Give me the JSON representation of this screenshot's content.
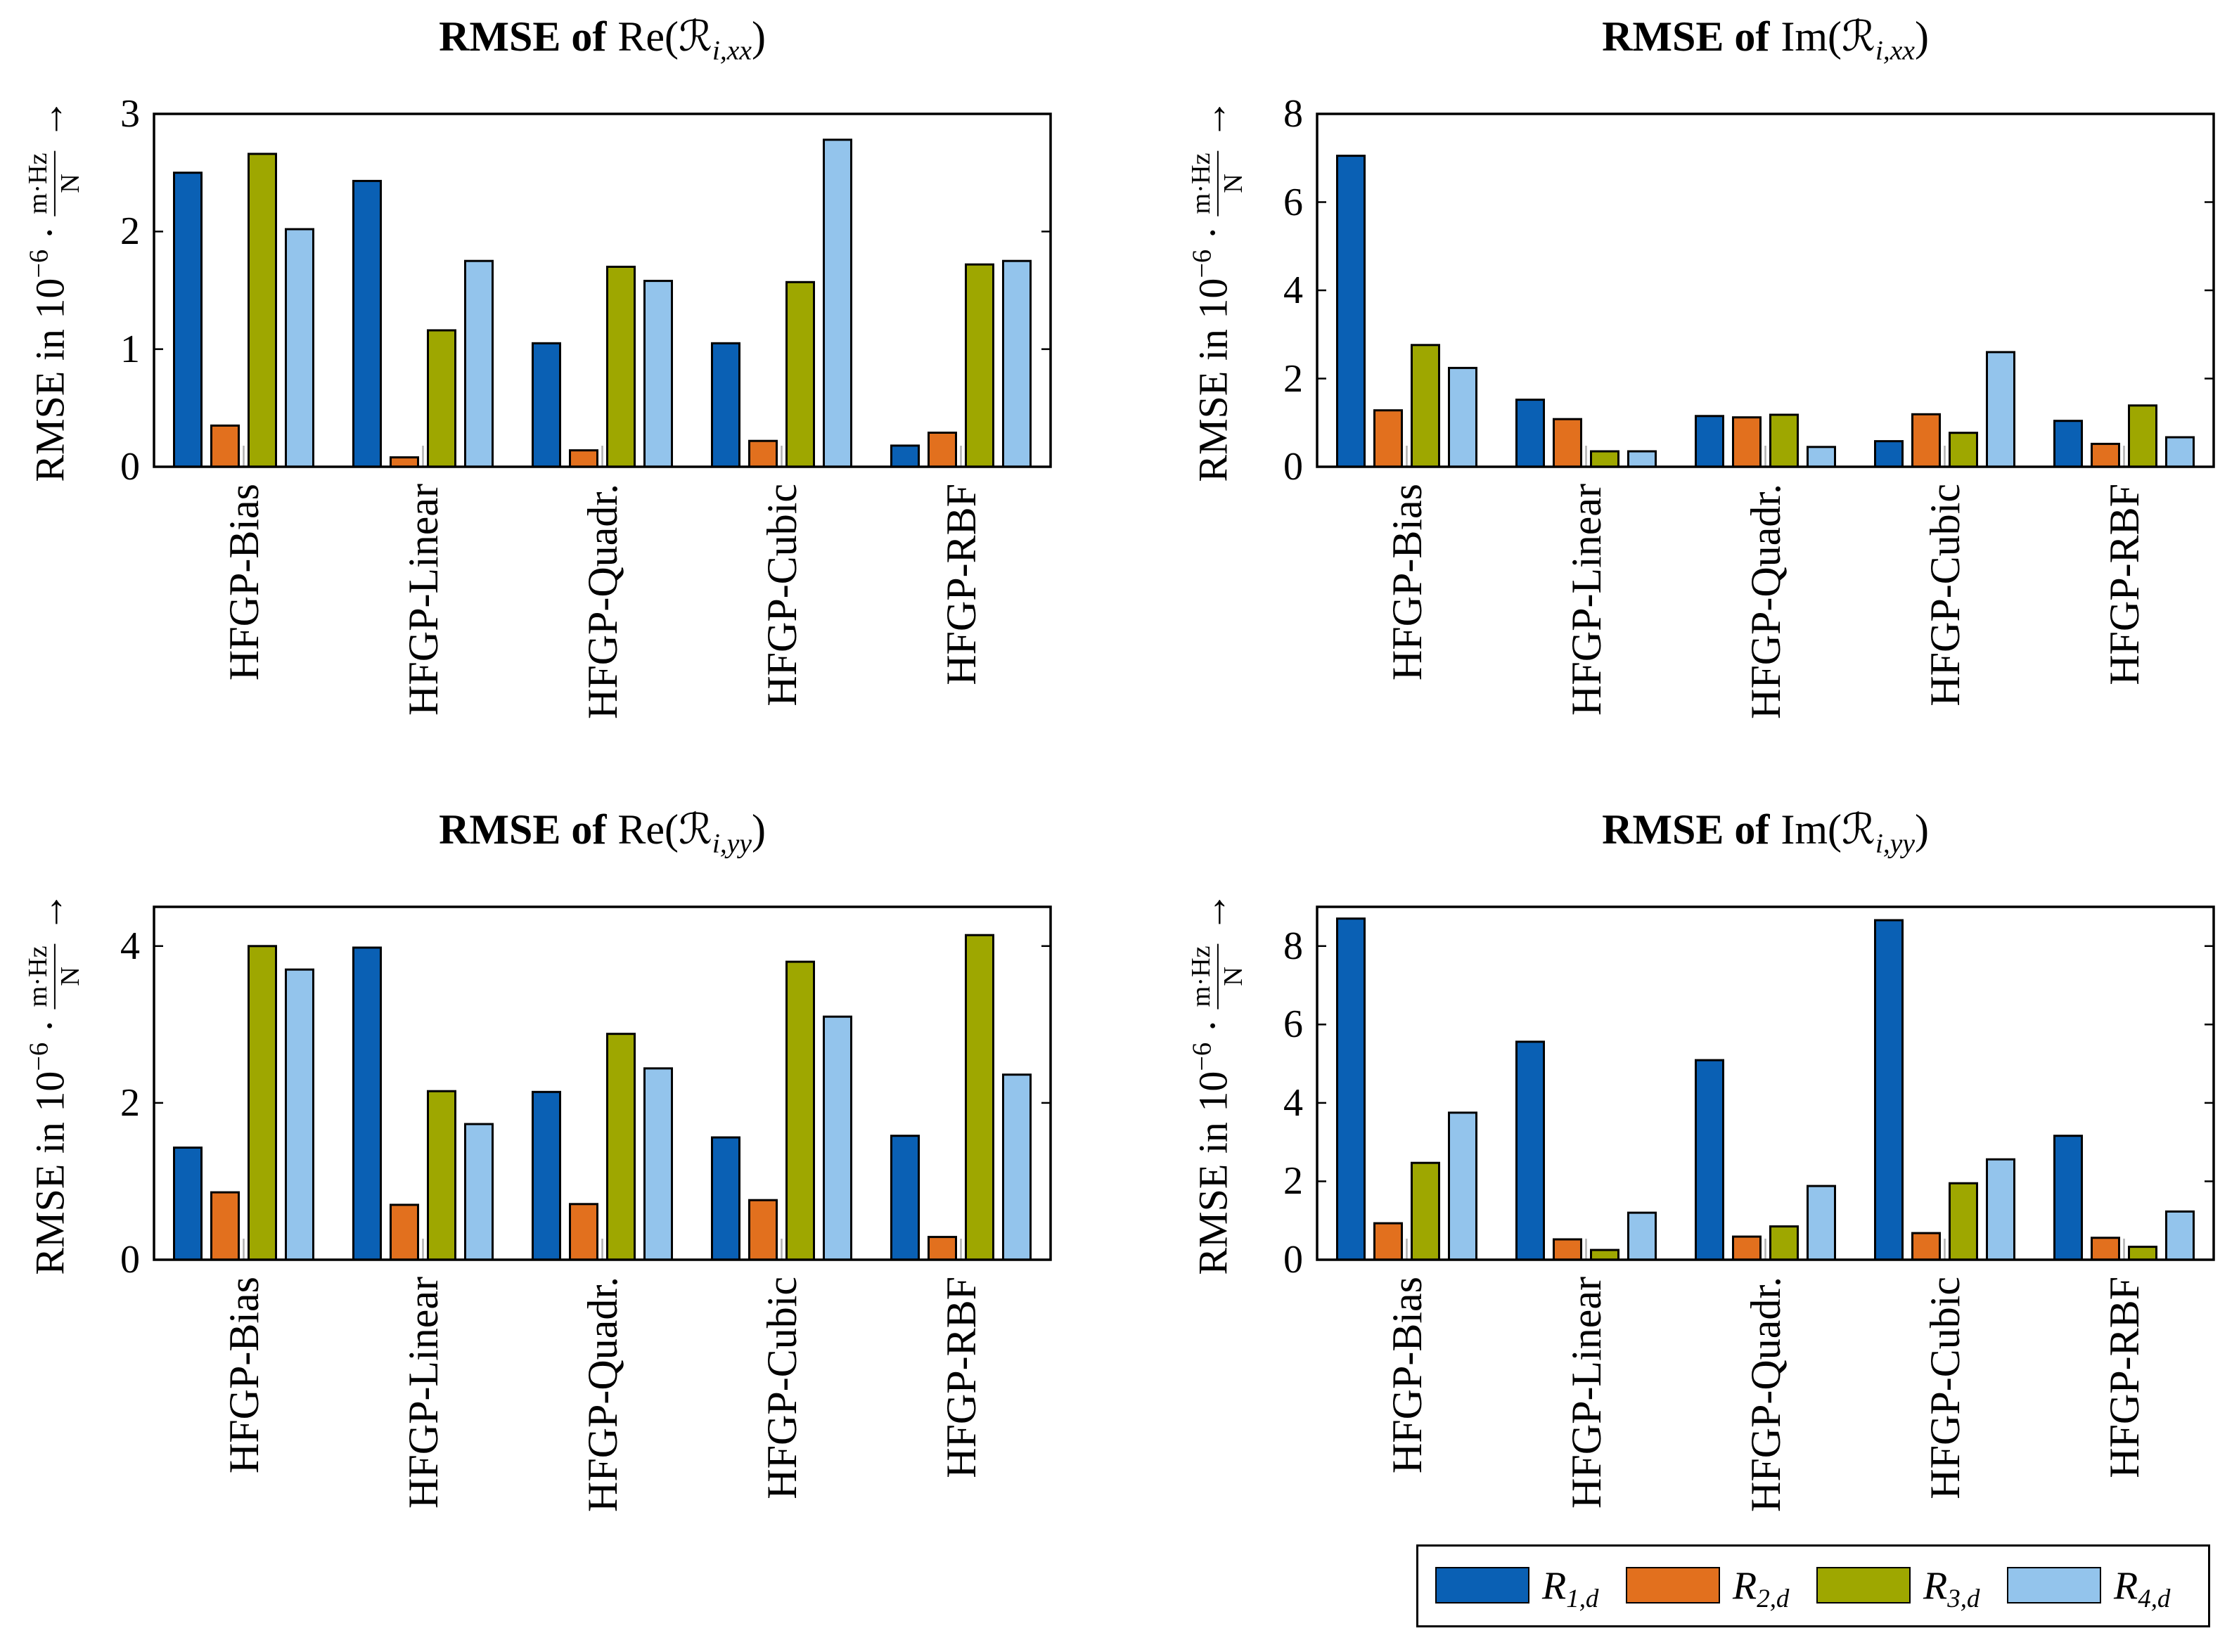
{
  "series_colors": [
    "#0a60b4",
    "#e2701e",
    "#9ea700",
    "#93c4ec"
  ],
  "legend": {
    "entries": [
      {
        "symbol": "R",
        "sub": "1,d"
      },
      {
        "symbol": "R",
        "sub": "2,d"
      },
      {
        "symbol": "R",
        "sub": "3,d"
      },
      {
        "symbol": "R",
        "sub": "4,d"
      }
    ]
  },
  "chart_data": [
    {
      "type": "bar",
      "title": {
        "bold": "RMSE of",
        "func": "Re(",
        "symbol": "ℛ",
        "sub": "i,xx",
        "close": ")"
      },
      "ylabel": {
        "text": "RMSE in 10",
        "exp": "−6",
        "dot": "·",
        "num": "m·Hz",
        "den": "N",
        "arrow": "→"
      },
      "categories": [
        "HFGP-Bias",
        "HFGP-Linear",
        "HFGP-Quadr.",
        "HFGP-Cubic",
        "HFGP-RBF"
      ],
      "ylim": [
        0,
        3
      ],
      "yticks": [
        0,
        1,
        2,
        3
      ],
      "series": [
        {
          "values": [
            2.5,
            2.43,
            1.05,
            1.05,
            0.18
          ]
        },
        {
          "values": [
            0.35,
            0.08,
            0.14,
            0.22,
            0.29
          ]
        },
        {
          "values": [
            2.66,
            1.16,
            1.7,
            1.57,
            1.72
          ]
        },
        {
          "values": [
            2.02,
            1.75,
            1.58,
            2.78,
            1.75
          ]
        }
      ]
    },
    {
      "type": "bar",
      "title": {
        "bold": "RMSE of",
        "func": "Im(",
        "symbol": "ℛ",
        "sub": "i,xx",
        "close": ")"
      },
      "ylabel": {
        "text": "RMSE in 10",
        "exp": "−6",
        "dot": "·",
        "num": "m·Hz",
        "den": "N",
        "arrow": "→"
      },
      "categories": [
        "HFGP-Bias",
        "HFGP-Linear",
        "HFGP-Quadr.",
        "HFGP-Cubic",
        "HFGP-RBF"
      ],
      "ylim": [
        0,
        8
      ],
      "yticks": [
        0,
        2,
        4,
        6,
        8
      ],
      "series": [
        {
          "values": [
            7.05,
            1.52,
            1.15,
            0.58,
            1.04
          ]
        },
        {
          "values": [
            1.28,
            1.08,
            1.12,
            1.19,
            0.52
          ]
        },
        {
          "values": [
            2.76,
            0.35,
            1.18,
            0.77,
            1.39
          ]
        },
        {
          "values": [
            2.24,
            0.35,
            0.45,
            2.6,
            0.67
          ]
        }
      ]
    },
    {
      "type": "bar",
      "title": {
        "bold": "RMSE of",
        "func": "Re(",
        "symbol": "ℛ",
        "sub": "i,yy",
        "close": ")"
      },
      "ylabel": {
        "text": "RMSE in 10",
        "exp": "−6",
        "dot": "·",
        "num": "m·Hz",
        "den": "N",
        "arrow": "→"
      },
      "categories": [
        "HFGP-Bias",
        "HFGP-Linear",
        "HFGP-Quadr.",
        "HFGP-Cubic",
        "HFGP-RBF"
      ],
      "ylim": [
        0,
        4.5
      ],
      "yticks": [
        0,
        2,
        4
      ],
      "series": [
        {
          "values": [
            1.43,
            3.98,
            2.14,
            1.56,
            1.58
          ]
        },
        {
          "values": [
            0.86,
            0.7,
            0.71,
            0.76,
            0.29
          ]
        },
        {
          "values": [
            4.0,
            2.15,
            2.88,
            3.8,
            4.14
          ]
        },
        {
          "values": [
            3.7,
            1.73,
            2.44,
            3.1,
            2.36
          ]
        }
      ]
    },
    {
      "type": "bar",
      "title": {
        "bold": "RMSE of",
        "func": "Im(",
        "symbol": "ℛ",
        "sub": "i,yy",
        "close": ")"
      },
      "ylabel": {
        "text": "RMSE in 10",
        "exp": "−6",
        "dot": "·",
        "num": "m·Hz",
        "den": "N",
        "arrow": "→"
      },
      "categories": [
        "HFGP-Bias",
        "HFGP-Linear",
        "HFGP-Quadr.",
        "HFGP-Cubic",
        "HFGP-RBF"
      ],
      "ylim": [
        0,
        9
      ],
      "yticks": [
        0,
        2,
        4,
        6,
        8
      ],
      "series": [
        {
          "values": [
            8.7,
            5.56,
            5.09,
            8.66,
            3.16
          ]
        },
        {
          "values": [
            0.93,
            0.52,
            0.59,
            0.68,
            0.56
          ]
        },
        {
          "values": [
            2.47,
            0.25,
            0.85,
            1.95,
            0.33
          ]
        },
        {
          "values": [
            3.75,
            1.2,
            1.88,
            2.56,
            1.23
          ]
        }
      ]
    }
  ]
}
